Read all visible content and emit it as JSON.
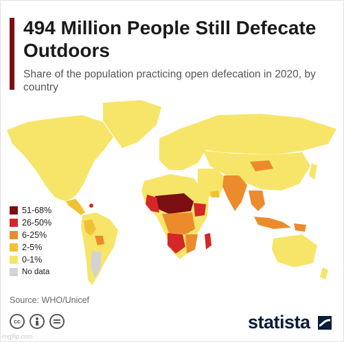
{
  "title": "494 Million People Still Defecate Outdoors",
  "subtitle": "Share of the population practicing open defecation in 2020, by country",
  "legend": [
    {
      "label": "51-68%",
      "color": "#7b0f12"
    },
    {
      "label": "26-50%",
      "color": "#d62728"
    },
    {
      "label": "6-25%",
      "color": "#ec8b2c"
    },
    {
      "label": "2-5%",
      "color": "#f0c233"
    },
    {
      "label": "0-1%",
      "color": "#f7e56a"
    },
    {
      "label": "No data",
      "color": "#d3d3d3"
    }
  ],
  "source": "Source: WHO/Unicef",
  "license_icons": [
    "cc-icon",
    "attribution-icon",
    "no-derivatives-icon"
  ],
  "brand": "statista",
  "watermark": "imgflip.com"
}
